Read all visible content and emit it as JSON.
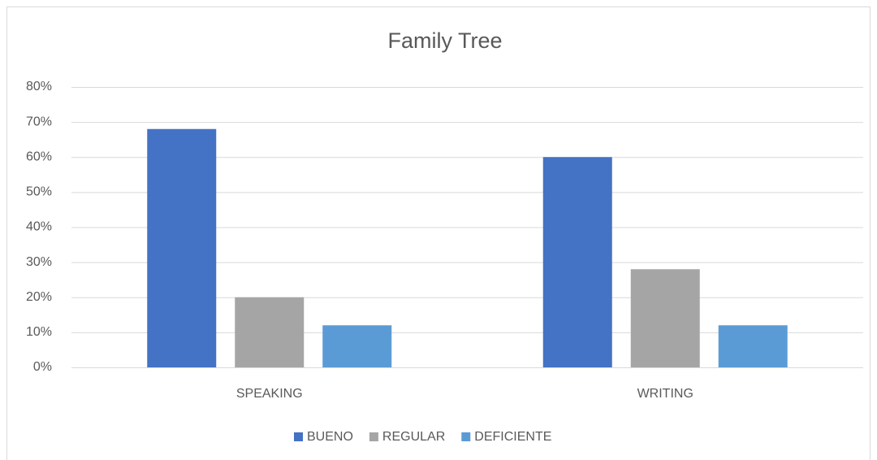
{
  "chart_data": {
    "type": "bar",
    "title": "Family Tree",
    "categories": [
      "SPEAKING",
      "WRITING"
    ],
    "series": [
      {
        "name": "BUENO",
        "color": "#4472c4",
        "values": [
          68,
          60
        ]
      },
      {
        "name": "REGULAR",
        "color": "#a5a5a5",
        "values": [
          20,
          28
        ]
      },
      {
        "name": "DEFICIENTE",
        "color": "#5b9bd5",
        "values": [
          12,
          12
        ]
      }
    ],
    "ylim": [
      0,
      80
    ],
    "yticks": [
      {
        "value": 0,
        "label": "0%"
      },
      {
        "value": 10,
        "label": "10%"
      },
      {
        "value": 20,
        "label": "20%"
      },
      {
        "value": 30,
        "label": "30%"
      },
      {
        "value": 40,
        "label": "40%"
      },
      {
        "value": 50,
        "label": "50%"
      },
      {
        "value": 60,
        "label": "60%"
      },
      {
        "value": 70,
        "label": "70%"
      },
      {
        "value": 80,
        "label": "80%"
      }
    ],
    "grid": true,
    "legend": "bottom"
  }
}
